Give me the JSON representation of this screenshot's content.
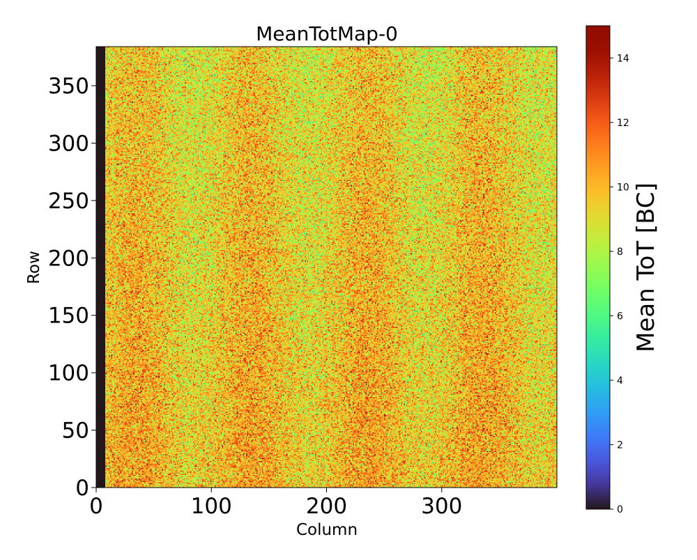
{
  "chart_data": {
    "type": "heatmap",
    "title": "MeanTotMap-0",
    "xlabel": "Column",
    "ylabel": "Row",
    "xlim": [
      0,
      400
    ],
    "ylim": [
      0,
      384
    ],
    "x_ticks": [
      0,
      100,
      200,
      300
    ],
    "y_ticks": [
      0,
      50,
      100,
      150,
      200,
      250,
      300,
      350
    ],
    "grid": false,
    "dead_columns": [
      0,
      8
    ],
    "typical_value_range": [
      6,
      14
    ],
    "colorbar": {
      "label": "Mean ToT [BC]",
      "min": 0,
      "max": 15,
      "ticks": [
        0,
        2,
        4,
        6,
        8,
        10,
        12,
        14
      ],
      "colormap": "turbo",
      "position": "right"
    }
  }
}
